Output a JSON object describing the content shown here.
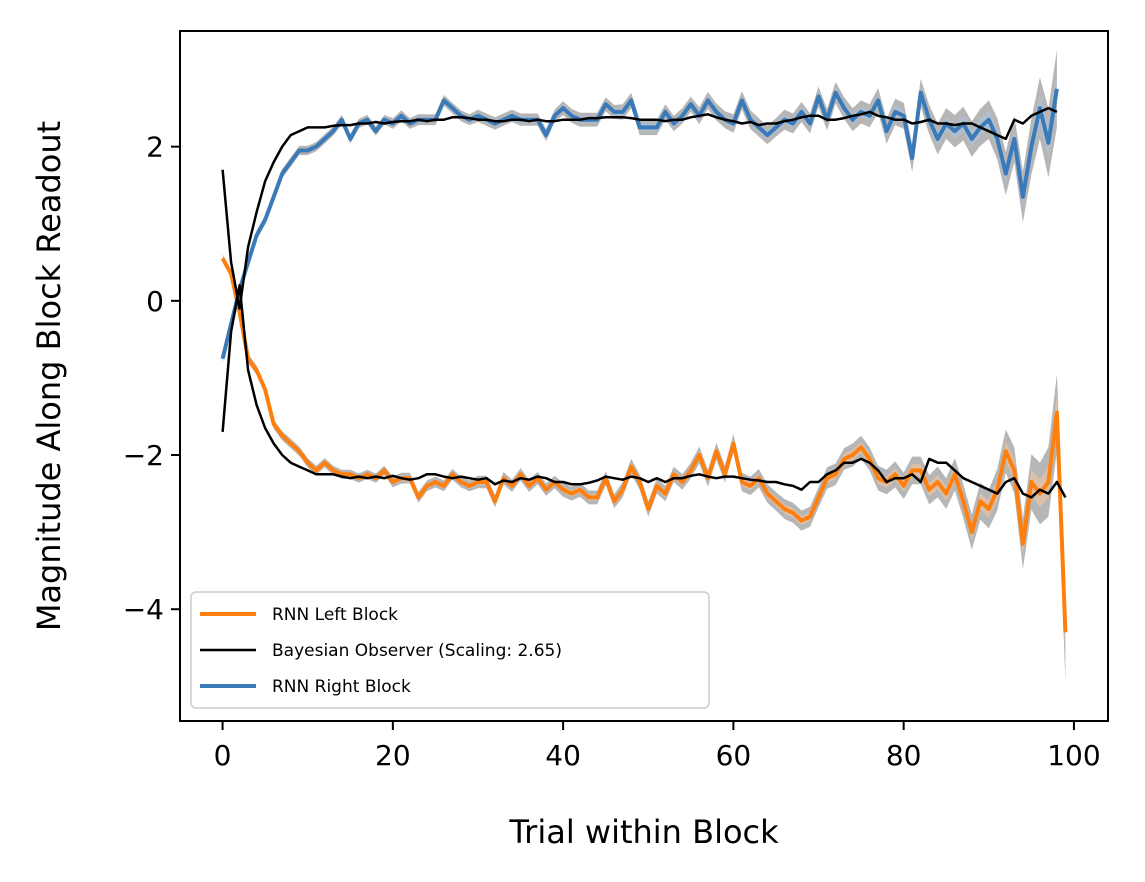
{
  "chart_data": {
    "type": "line",
    "xlabel": "Trial within Block",
    "ylabel": "Magnitude Along Block Readout",
    "xlim": [
      -5,
      104
    ],
    "ylim": [
      -5.45,
      3.5
    ],
    "xticks": [
      0,
      20,
      40,
      60,
      80,
      100
    ],
    "xtick_labels": [
      "0",
      "20",
      "40",
      "60",
      "80",
      "100"
    ],
    "yticks": [
      -4,
      -2,
      0,
      2
    ],
    "ytick_labels": [
      "−4",
      "−2",
      "0",
      "2"
    ],
    "legend_position": "lower-left",
    "series": [
      {
        "name": "RNN Left Block",
        "color": "#ff7f0e",
        "band_color": "#f7c99e",
        "x": [
          0,
          1,
          2,
          3,
          4,
          5,
          6,
          7,
          8,
          9,
          10,
          11,
          12,
          13,
          14,
          15,
          16,
          17,
          18,
          19,
          20,
          21,
          22,
          23,
          24,
          25,
          26,
          27,
          28,
          29,
          30,
          31,
          32,
          33,
          34,
          35,
          36,
          37,
          38,
          39,
          40,
          41,
          42,
          43,
          44,
          45,
          46,
          47,
          48,
          49,
          50,
          51,
          52,
          53,
          54,
          55,
          56,
          57,
          58,
          59,
          60,
          61,
          62,
          63,
          64,
          65,
          66,
          67,
          68,
          69,
          70,
          71,
          72,
          73,
          74,
          75,
          76,
          77,
          78,
          79,
          80,
          81,
          82,
          83,
          84,
          85,
          86,
          87,
          88,
          89,
          90,
          91,
          92,
          93,
          94,
          95,
          96,
          97,
          98,
          99
        ],
        "y": [
          0.55,
          0.35,
          -0.15,
          -0.75,
          -0.9,
          -1.15,
          -1.6,
          -1.75,
          -1.85,
          -1.95,
          -2.1,
          -2.2,
          -2.1,
          -2.2,
          -2.25,
          -2.25,
          -2.3,
          -2.25,
          -2.3,
          -2.2,
          -2.35,
          -2.3,
          -2.3,
          -2.55,
          -2.4,
          -2.35,
          -2.4,
          -2.25,
          -2.35,
          -2.4,
          -2.35,
          -2.35,
          -2.6,
          -2.3,
          -2.4,
          -2.25,
          -2.4,
          -2.3,
          -2.45,
          -2.35,
          -2.45,
          -2.5,
          -2.45,
          -2.55,
          -2.55,
          -2.3,
          -2.6,
          -2.45,
          -2.15,
          -2.35,
          -2.7,
          -2.4,
          -2.5,
          -2.25,
          -2.35,
          -2.2,
          -2.0,
          -2.3,
          -1.95,
          -2.25,
          -1.85,
          -2.35,
          -2.4,
          -2.3,
          -2.5,
          -2.6,
          -2.7,
          -2.75,
          -2.85,
          -2.8,
          -2.55,
          -2.3,
          -2.25,
          -2.05,
          -2.0,
          -1.9,
          -2.05,
          -2.3,
          -2.35,
          -2.25,
          -2.4,
          -2.2,
          -2.2,
          -2.45,
          -2.35,
          -2.5,
          -2.25,
          -2.6,
          -3.0,
          -2.6,
          -2.7,
          -2.45,
          -1.95,
          -2.2,
          -3.15,
          -2.35,
          -2.5,
          -2.35,
          -1.45,
          -4.3
        ],
        "spread": [
          0.05,
          0.05,
          0.05,
          0.06,
          0.06,
          0.06,
          0.06,
          0.06,
          0.06,
          0.06,
          0.06,
          0.06,
          0.06,
          0.06,
          0.06,
          0.06,
          0.06,
          0.06,
          0.06,
          0.06,
          0.07,
          0.07,
          0.07,
          0.07,
          0.07,
          0.07,
          0.07,
          0.07,
          0.07,
          0.07,
          0.08,
          0.08,
          0.08,
          0.08,
          0.08,
          0.08,
          0.08,
          0.08,
          0.08,
          0.08,
          0.09,
          0.09,
          0.09,
          0.09,
          0.09,
          0.09,
          0.09,
          0.1,
          0.1,
          0.1,
          0.1,
          0.1,
          0.1,
          0.1,
          0.1,
          0.1,
          0.11,
          0.11,
          0.11,
          0.11,
          0.12,
          0.12,
          0.12,
          0.12,
          0.12,
          0.12,
          0.13,
          0.13,
          0.13,
          0.13,
          0.13,
          0.14,
          0.14,
          0.14,
          0.15,
          0.15,
          0.15,
          0.16,
          0.16,
          0.17,
          0.17,
          0.18,
          0.18,
          0.19,
          0.2,
          0.2,
          0.21,
          0.22,
          0.23,
          0.24,
          0.25,
          0.27,
          0.28,
          0.3,
          0.33,
          0.36,
          0.4,
          0.45,
          0.5,
          0.65
        ]
      },
      {
        "name": "Bayesian Observer (Scaling: 2.65)",
        "color": "#000000",
        "x": [
          0,
          1,
          2,
          3,
          4,
          5,
          6,
          7,
          8,
          9,
          10,
          11,
          12,
          13,
          14,
          15,
          16,
          17,
          18,
          19,
          20,
          21,
          22,
          23,
          24,
          25,
          26,
          27,
          28,
          29,
          30,
          31,
          32,
          33,
          34,
          35,
          36,
          37,
          38,
          39,
          40,
          41,
          42,
          43,
          44,
          45,
          46,
          47,
          48,
          49,
          50,
          51,
          52,
          53,
          54,
          55,
          56,
          57,
          58,
          59,
          60,
          61,
          62,
          63,
          64,
          65,
          66,
          67,
          68,
          69,
          70,
          71,
          72,
          73,
          74,
          75,
          76,
          77,
          78,
          79,
          80,
          81,
          82,
          83,
          84,
          85,
          86,
          87,
          88,
          89,
          90,
          91,
          92,
          93,
          94,
          95,
          96,
          97,
          98,
          99
        ],
        "y": [
          -1.7,
          -0.4,
          0.2,
          -0.9,
          -1.35,
          -1.65,
          -1.85,
          -2.0,
          -2.1,
          -2.15,
          -2.2,
          -2.25,
          -2.25,
          -2.25,
          -2.28,
          -2.3,
          -2.28,
          -2.3,
          -2.28,
          -2.3,
          -2.27,
          -2.3,
          -2.32,
          -2.3,
          -2.25,
          -2.25,
          -2.28,
          -2.3,
          -2.28,
          -2.3,
          -2.32,
          -2.3,
          -2.38,
          -2.33,
          -2.35,
          -2.3,
          -2.32,
          -2.28,
          -2.3,
          -2.35,
          -2.35,
          -2.38,
          -2.38,
          -2.36,
          -2.33,
          -2.28,
          -2.3,
          -2.32,
          -2.28,
          -2.3,
          -2.35,
          -2.3,
          -2.35,
          -2.3,
          -2.3,
          -2.27,
          -2.25,
          -2.28,
          -2.3,
          -2.28,
          -2.28,
          -2.3,
          -2.32,
          -2.33,
          -2.35,
          -2.35,
          -2.38,
          -2.4,
          -2.45,
          -2.35,
          -2.35,
          -2.25,
          -2.2,
          -2.1,
          -2.1,
          -2.05,
          -2.1,
          -2.2,
          -2.35,
          -2.3,
          -2.3,
          -2.25,
          -2.35,
          -2.05,
          -2.1,
          -2.1,
          -2.2,
          -2.3,
          -2.35,
          -2.4,
          -2.45,
          -2.5,
          -2.35,
          -2.3,
          -2.5,
          -2.55,
          -2.45,
          -2.5,
          -2.35,
          -2.55
        ]
      },
      {
        "name": "Bayesian Observer (Scaling: 2.65)",
        "color": "#000000",
        "x": [
          0,
          1,
          2,
          3,
          4,
          5,
          6,
          7,
          8,
          9,
          10,
          11,
          12,
          13,
          14,
          15,
          16,
          17,
          18,
          19,
          20,
          21,
          22,
          23,
          24,
          25,
          26,
          27,
          28,
          29,
          30,
          31,
          32,
          33,
          34,
          35,
          36,
          37,
          38,
          39,
          40,
          41,
          42,
          43,
          44,
          45,
          46,
          47,
          48,
          49,
          50,
          51,
          52,
          53,
          54,
          55,
          56,
          57,
          58,
          59,
          60,
          61,
          62,
          63,
          64,
          65,
          66,
          67,
          68,
          69,
          70,
          71,
          72,
          73,
          74,
          75,
          76,
          77,
          78,
          79,
          80,
          81,
          82,
          83,
          84,
          85,
          86,
          87,
          88,
          89,
          90,
          91,
          92,
          93,
          94,
          95,
          96,
          97,
          98
        ],
        "y": [
          1.7,
          0.5,
          -0.1,
          0.7,
          1.15,
          1.55,
          1.8,
          2.0,
          2.15,
          2.2,
          2.25,
          2.25,
          2.25,
          2.27,
          2.28,
          2.28,
          2.3,
          2.3,
          2.32,
          2.3,
          2.32,
          2.33,
          2.33,
          2.35,
          2.33,
          2.35,
          2.35,
          2.38,
          2.38,
          2.37,
          2.35,
          2.35,
          2.33,
          2.33,
          2.35,
          2.35,
          2.33,
          2.35,
          2.33,
          2.33,
          2.35,
          2.35,
          2.35,
          2.37,
          2.37,
          2.38,
          2.38,
          2.38,
          2.37,
          2.35,
          2.35,
          2.35,
          2.33,
          2.35,
          2.35,
          2.38,
          2.4,
          2.42,
          2.38,
          2.35,
          2.33,
          2.3,
          2.32,
          2.28,
          2.3,
          2.3,
          2.33,
          2.35,
          2.38,
          2.4,
          2.4,
          2.35,
          2.35,
          2.37,
          2.4,
          2.42,
          2.45,
          2.4,
          2.38,
          2.35,
          2.35,
          2.3,
          2.32,
          2.35,
          2.3,
          2.3,
          2.28,
          2.3,
          2.3,
          2.25,
          2.2,
          2.15,
          2.1,
          2.35,
          2.3,
          2.4,
          2.45,
          2.5,
          2.45
        ]
      },
      {
        "name": "RNN Right Block",
        "color": "#3a7ab8",
        "band_color": "#a9c6e4",
        "x": [
          0,
          1,
          2,
          3,
          4,
          5,
          6,
          7,
          8,
          9,
          10,
          11,
          12,
          13,
          14,
          15,
          16,
          17,
          18,
          19,
          20,
          21,
          22,
          23,
          24,
          25,
          26,
          27,
          28,
          29,
          30,
          31,
          32,
          33,
          34,
          35,
          36,
          37,
          38,
          39,
          40,
          41,
          42,
          43,
          44,
          45,
          46,
          47,
          48,
          49,
          50,
          51,
          52,
          53,
          54,
          55,
          56,
          57,
          58,
          59,
          60,
          61,
          62,
          63,
          64,
          65,
          66,
          67,
          68,
          69,
          70,
          71,
          72,
          73,
          74,
          75,
          76,
          77,
          78,
          79,
          80,
          81,
          82,
          83,
          84,
          85,
          86,
          87,
          88,
          89,
          90,
          91,
          92,
          93,
          94,
          95,
          96,
          97,
          98
        ],
        "y": [
          -0.75,
          -0.3,
          0.15,
          0.5,
          0.85,
          1.05,
          1.35,
          1.65,
          1.8,
          1.95,
          1.95,
          2.0,
          2.1,
          2.2,
          2.35,
          2.1,
          2.3,
          2.35,
          2.2,
          2.35,
          2.3,
          2.4,
          2.3,
          2.35,
          2.35,
          2.35,
          2.6,
          2.5,
          2.4,
          2.35,
          2.4,
          2.35,
          2.3,
          2.35,
          2.4,
          2.35,
          2.35,
          2.35,
          2.15,
          2.4,
          2.5,
          2.4,
          2.35,
          2.35,
          2.35,
          2.55,
          2.45,
          2.45,
          2.6,
          2.25,
          2.25,
          2.25,
          2.45,
          2.3,
          2.4,
          2.55,
          2.4,
          2.6,
          2.45,
          2.35,
          2.3,
          2.6,
          2.35,
          2.25,
          2.15,
          2.25,
          2.35,
          2.3,
          2.45,
          2.3,
          2.65,
          2.35,
          2.7,
          2.5,
          2.35,
          2.45,
          2.4,
          2.6,
          2.2,
          2.45,
          2.4,
          1.85,
          2.7,
          2.35,
          2.1,
          2.3,
          2.2,
          2.3,
          2.1,
          2.25,
          2.35,
          2.1,
          1.65,
          2.1,
          1.35,
          2.0,
          2.5,
          2.05,
          2.75
        ],
        "spread": [
          0.05,
          0.05,
          0.05,
          0.06,
          0.06,
          0.06,
          0.06,
          0.06,
          0.06,
          0.06,
          0.06,
          0.06,
          0.06,
          0.06,
          0.06,
          0.06,
          0.06,
          0.06,
          0.06,
          0.06,
          0.07,
          0.07,
          0.07,
          0.07,
          0.07,
          0.07,
          0.07,
          0.07,
          0.07,
          0.07,
          0.08,
          0.08,
          0.08,
          0.08,
          0.08,
          0.08,
          0.08,
          0.08,
          0.08,
          0.08,
          0.09,
          0.09,
          0.09,
          0.09,
          0.09,
          0.09,
          0.09,
          0.1,
          0.1,
          0.1,
          0.1,
          0.1,
          0.1,
          0.1,
          0.1,
          0.1,
          0.11,
          0.11,
          0.11,
          0.11,
          0.12,
          0.12,
          0.12,
          0.12,
          0.12,
          0.12,
          0.13,
          0.13,
          0.13,
          0.13,
          0.13,
          0.14,
          0.14,
          0.14,
          0.15,
          0.15,
          0.15,
          0.16,
          0.16,
          0.17,
          0.17,
          0.18,
          0.18,
          0.19,
          0.2,
          0.2,
          0.21,
          0.22,
          0.23,
          0.24,
          0.25,
          0.27,
          0.28,
          0.3,
          0.33,
          0.36,
          0.4,
          0.45,
          0.5
        ]
      }
    ],
    "legend": [
      {
        "label": "RNN Left Block",
        "color": "#ff7f0e",
        "width": 4
      },
      {
        "label": "Bayesian Observer (Scaling: 2.65)",
        "color": "#000000",
        "width": 2.5
      },
      {
        "label": "RNN Right Block",
        "color": "#3a7ab8",
        "width": 4
      }
    ]
  }
}
